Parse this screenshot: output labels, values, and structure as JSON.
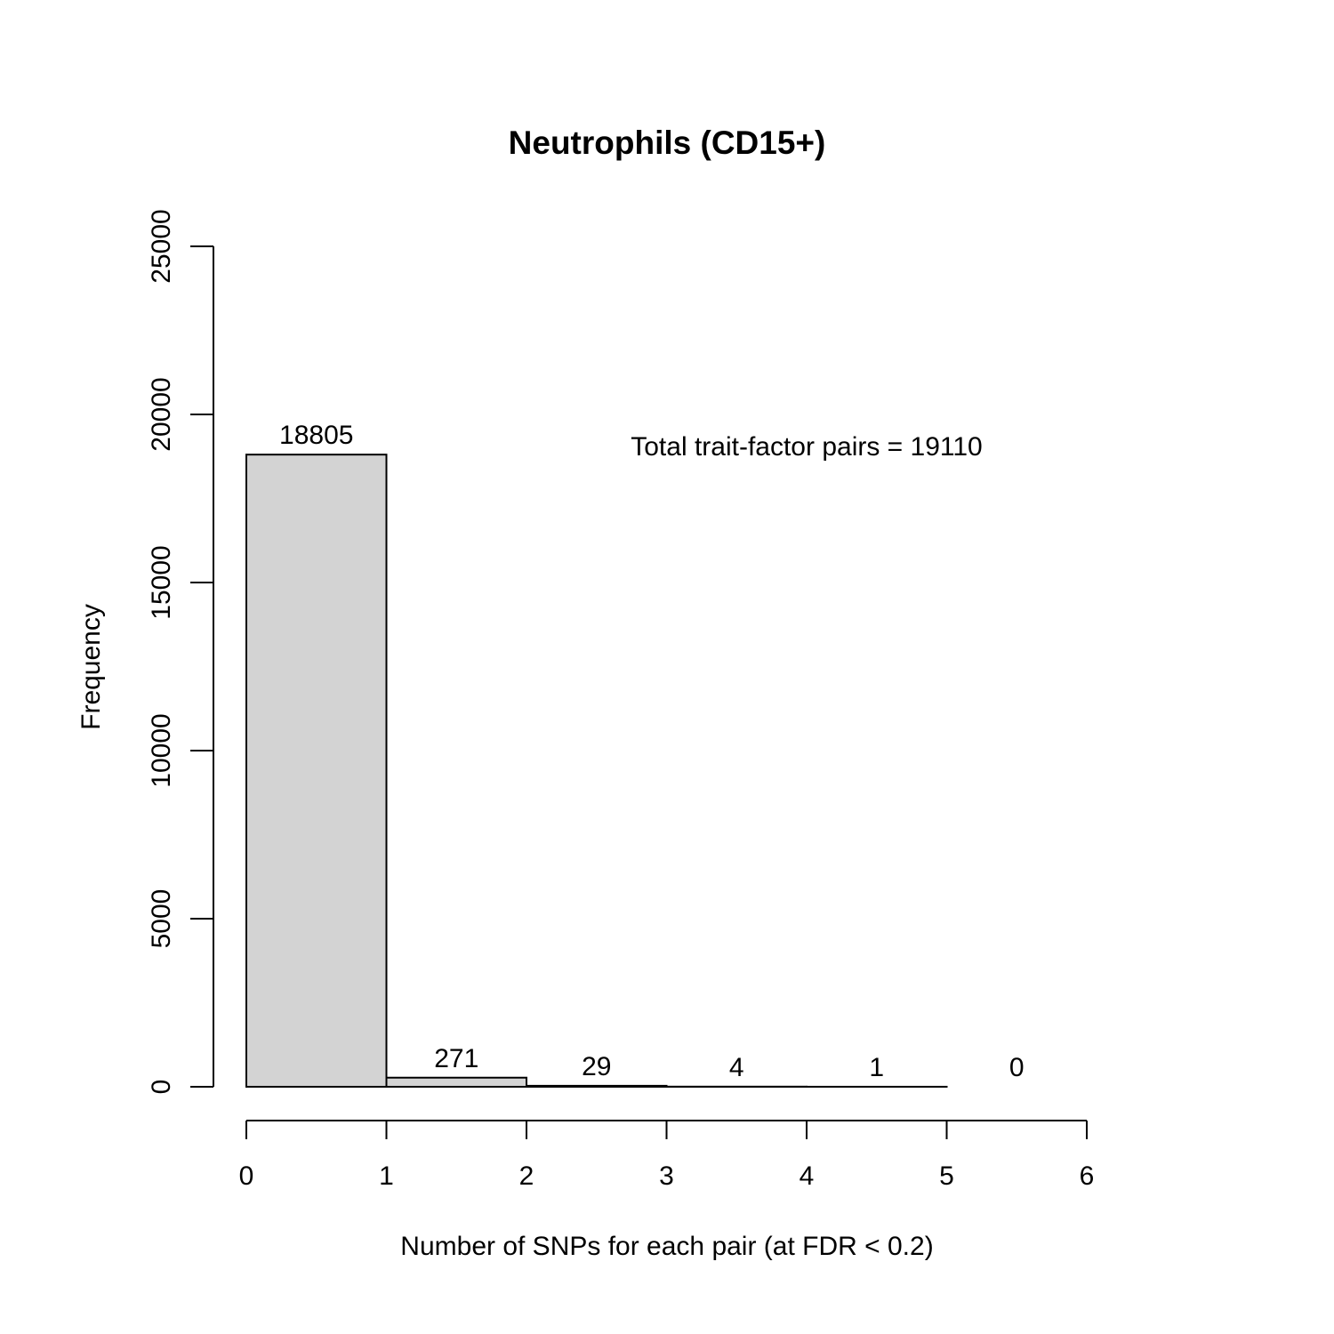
{
  "chart_data": {
    "type": "bar",
    "title": "Neutrophils (CD15+)",
    "xlabel": "Number of SNPs for each pair (at FDR < 0.2)",
    "ylabel": "Frequency",
    "bins": [
      {
        "start": 0,
        "end": 1,
        "value": 18805,
        "label": "18805"
      },
      {
        "start": 1,
        "end": 2,
        "value": 271,
        "label": "271"
      },
      {
        "start": 2,
        "end": 3,
        "value": 29,
        "label": "29"
      },
      {
        "start": 3,
        "end": 4,
        "value": 4,
        "label": "4"
      },
      {
        "start": 4,
        "end": 5,
        "value": 1,
        "label": "1"
      },
      {
        "start": 5,
        "end": 6,
        "value": 0,
        "label": "0"
      }
    ],
    "xlim": [
      0,
      6
    ],
    "ylim": [
      0,
      25000
    ],
    "xticks": [
      "0",
      "1",
      "2",
      "3",
      "4",
      "5",
      "6"
    ],
    "yticks": [
      "0",
      "5000",
      "10000",
      "15000",
      "20000",
      "25000"
    ],
    "annotation": "Total trait-factor pairs = 19110",
    "grid": false,
    "bar_fill": "#d3d3d3",
    "bar_stroke": "#000000"
  }
}
